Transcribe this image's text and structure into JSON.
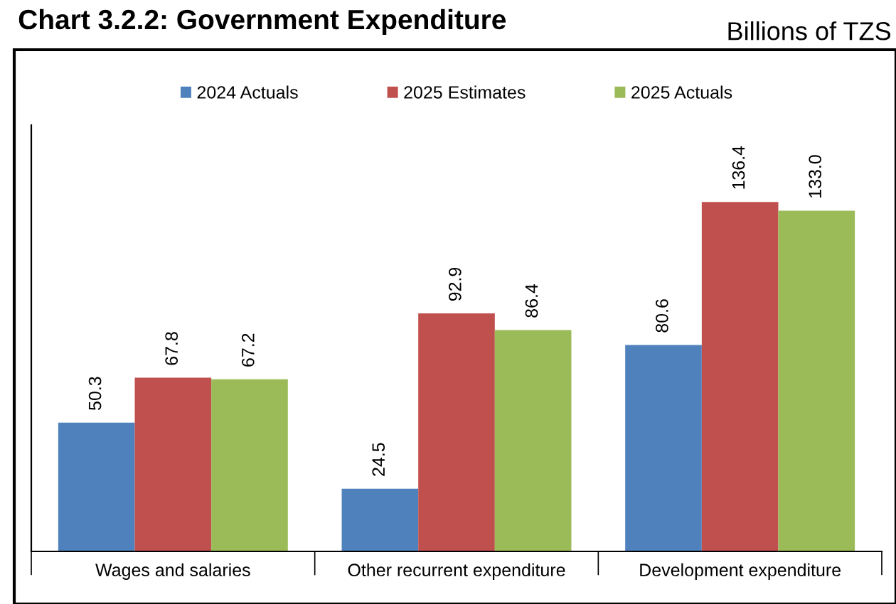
{
  "chart_data": {
    "type": "bar",
    "title": "Chart 3.2.2: Government Expenditure",
    "subtitle": "Billions of TZS",
    "categories": [
      "Wages and salaries",
      "Other recurrent expenditure",
      "Development expenditure"
    ],
    "series": [
      {
        "name": "2024 Actuals",
        "color": "#4f81bd",
        "values": [
          50.3,
          24.5,
          80.6
        ],
        "value_labels": [
          "50.3",
          "24.5",
          "80.6"
        ]
      },
      {
        "name": "2025 Estimates",
        "color": "#c0504d",
        "values": [
          67.8,
          92.9,
          136.4
        ],
        "value_labels": [
          "67.8",
          "92.9",
          "136.4"
        ]
      },
      {
        "name": "2025 Actuals",
        "color": "#9bbb59",
        "values": [
          67.2,
          86.4,
          133.0
        ],
        "value_labels": [
          "67.2",
          "86.4",
          "133.0"
        ]
      }
    ],
    "legend": "top",
    "grid": false,
    "relative": false
  }
}
